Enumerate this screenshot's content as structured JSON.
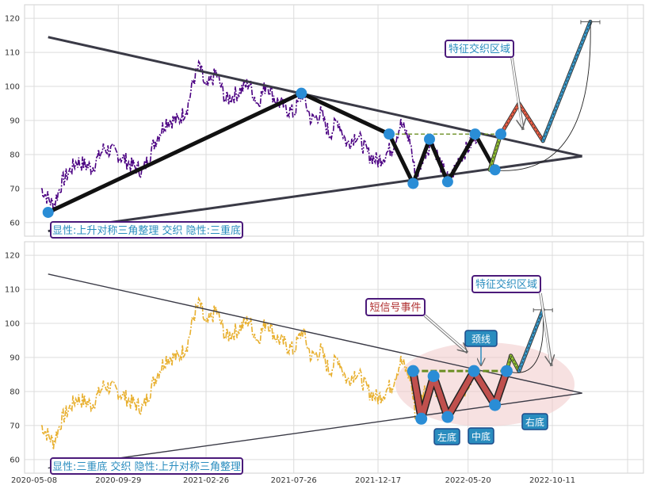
{
  "chart_data": [
    {
      "type": "line",
      "panel": "top",
      "ylim": [
        56,
        124
      ],
      "yticks": [
        60,
        70,
        80,
        90,
        100,
        110,
        120
      ],
      "grid": true,
      "price_color": "#4b0082",
      "price_style": "dash-dot",
      "price_anchors": [
        [
          "2020-05-20",
          70
        ],
        [
          "2020-06-10",
          65
        ],
        [
          "2020-06-25",
          72
        ],
        [
          "2020-07-20",
          78
        ],
        [
          "2020-08-15",
          76
        ],
        [
          "2020-09-05",
          82
        ],
        [
          "2020-09-29",
          80
        ],
        [
          "2020-10-20",
          77
        ],
        [
          "2020-11-10",
          75
        ],
        [
          "2020-12-01",
          84
        ],
        [
          "2020-12-20",
          90
        ],
        [
          "2021-01-10",
          90
        ],
        [
          "2021-01-25",
          94
        ],
        [
          "2021-02-05",
          102
        ],
        [
          "2021-02-15",
          106
        ],
        [
          "2021-02-26",
          99
        ],
        [
          "2021-03-15",
          104
        ],
        [
          "2021-04-01",
          96
        ],
        [
          "2021-04-20",
          98
        ],
        [
          "2021-05-10",
          101
        ],
        [
          "2021-05-25",
          95
        ],
        [
          "2021-06-10",
          101
        ],
        [
          "2021-06-25",
          96
        ],
        [
          "2021-07-10",
          94
        ],
        [
          "2021-07-26",
          92
        ],
        [
          "2021-08-10",
          98
        ],
        [
          "2021-08-25",
          90
        ],
        [
          "2021-09-10",
          92
        ],
        [
          "2021-09-25",
          86
        ],
        [
          "2021-10-10",
          90
        ],
        [
          "2021-10-25",
          83
        ],
        [
          "2021-11-10",
          86
        ],
        [
          "2021-12-01",
          80
        ],
        [
          "2021-12-17",
          78
        ],
        [
          "2022-01-10",
          82
        ],
        [
          "2022-01-25",
          89
        ],
        [
          "2022-02-10",
          84
        ],
        [
          "2022-02-20",
          72
        ],
        [
          "2022-03-05",
          80
        ],
        [
          "2022-03-20",
          84
        ],
        [
          "2022-04-05",
          76
        ],
        [
          "2022-04-18",
          72
        ],
        [
          "2022-05-05",
          79
        ],
        [
          "2022-05-20",
          82
        ],
        [
          "2022-06-05",
          86
        ]
      ],
      "triangle_upper": [
        [
          "2020-06-01",
          114.5
        ],
        [
          "2022-12-01",
          79.5
        ]
      ],
      "triangle_lower": [
        [
          "2020-06-01",
          57.5
        ],
        [
          "2022-12-01",
          79.5
        ]
      ],
      "pattern_dominant": "上升对称三角整理",
      "pattern_latent": "三重底",
      "zigzag": [
        [
          "2020-06-01",
          63
        ],
        [
          "2021-08-08",
          98
        ],
        [
          "2022-01-05",
          86
        ],
        [
          "2022-02-15",
          71.5
        ],
        [
          "2022-03-15",
          84.5
        ],
        [
          "2022-04-15",
          72
        ],
        [
          "2022-06-01",
          86
        ],
        [
          "2022-07-05",
          75.5
        ]
      ],
      "neckline": {
        "y": 86,
        "x_range": [
          "2022-01-05",
          "2022-07-15"
        ]
      },
      "feature_zone_point": [
        "2022-07-15",
        86
      ],
      "projection": [
        [
          "2022-06-26",
          75.5
        ],
        [
          "2022-07-15",
          86
        ],
        [
          "2022-08-15",
          95
        ],
        [
          "2022-09-25",
          84
        ],
        [
          "2022-12-15",
          119
        ]
      ],
      "projection_colors": {
        "up1": "#9acd32",
        "down": "#ff6347",
        "up2": "#3aa6dd"
      },
      "callout_label": "特征交织区域",
      "info_label": "显性:上升对称三角整理 交织 隐性:三重底"
    },
    {
      "type": "line",
      "panel": "bottom",
      "ylim": [
        56,
        124
      ],
      "yticks": [
        60,
        70,
        80,
        90,
        100,
        110,
        120
      ],
      "xticks": [
        "2020-05-08",
        "2020-09-29",
        "2021-02-26",
        "2021-07-26",
        "2021-12-17",
        "2022-05-20",
        "2022-10-11"
      ],
      "grid": true,
      "price_color": "#e8b030",
      "price_style": "dash-dot",
      "triangle_upper": [
        [
          "2020-06-01",
          114.5
        ],
        [
          "2022-12-01",
          79.5
        ]
      ],
      "triangle_lower": [
        [
          "2020-06-01",
          57.5
        ],
        [
          "2022-12-01",
          79.5
        ]
      ],
      "zigzag": [
        [
          "2022-02-15",
          86
        ],
        [
          "2022-03-01",
          72
        ],
        [
          "2022-03-22",
          84.5
        ],
        [
          "2022-04-15",
          72.5
        ],
        [
          "2022-05-30",
          86
        ],
        [
          "2022-07-05",
          76
        ],
        [
          "2022-07-25",
          86
        ]
      ],
      "neckline": {
        "y": 86,
        "x_range": [
          "2022-02-15",
          "2022-07-25"
        ]
      },
      "markers": [
        {
          "name": "左底",
          "date": "2022-03-01",
          "value": 72
        },
        {
          "name": "中底",
          "date": "2022-04-15",
          "value": 72.5
        },
        {
          "name": "右底",
          "date": "2022-07-05",
          "value": 76
        }
      ],
      "neckline_label": "颈线",
      "short_signal_label": "短信号事件",
      "callout_label": "特征交织区域",
      "projection": [
        [
          "2022-07-25",
          86
        ],
        [
          "2022-08-01",
          90.5
        ],
        [
          "2022-08-15",
          86
        ],
        [
          "2022-09-25",
          104
        ]
      ],
      "info_label": "显性:三重底 交织 隐性:上升对称三角整理"
    }
  ]
}
